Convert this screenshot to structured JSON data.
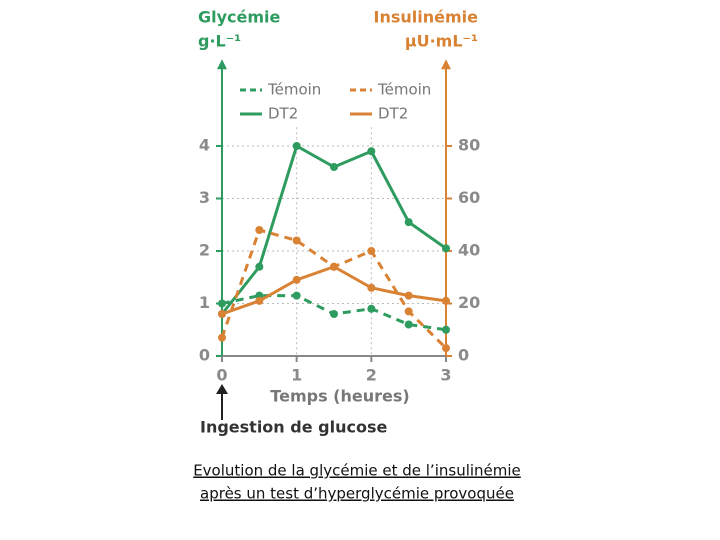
{
  "chart_data": {
    "type": "line",
    "y_label": [
      "Glycémie",
      "g·L⁻¹"
    ],
    "y2_label": [
      "Insulinémie",
      "μU·mL⁻¹"
    ],
    "x_label": "Temps (heures)",
    "annotation": "Ingestion de glucose",
    "x": [
      0,
      0.5,
      1,
      1.5,
      2,
      2.5,
      3
    ],
    "xlim": [
      0,
      3
    ],
    "xticks": [
      0,
      1,
      2,
      3
    ],
    "ylim": [
      0,
      5.5
    ],
    "yticks": [
      0,
      1,
      2,
      3,
      4
    ],
    "y2lim": [
      0,
      110
    ],
    "y2ticks": [
      0,
      20,
      40,
      60,
      80
    ],
    "grid": true,
    "series": [
      {
        "name": "Témoin",
        "color": "#2e9b5f",
        "dash": true,
        "values": [
          1.0,
          1.15,
          1.15,
          0.8,
          0.9,
          0.6,
          0.5
        ]
      },
      {
        "name": "DT2",
        "color": "#2e9b5f",
        "dash": false,
        "values": [
          0.8,
          1.7,
          4.0,
          3.6,
          3.9,
          2.55,
          2.05
        ]
      },
      {
        "name": "Témoin",
        "color": "#d98234",
        "dash": true,
        "axis": "y2",
        "values": [
          7,
          48,
          44,
          34,
          40,
          17,
          3
        ]
      },
      {
        "name": "DT2",
        "color": "#d98234",
        "dash": false,
        "axis": "y2",
        "values": [
          16,
          21,
          29,
          34,
          26,
          23,
          21
        ]
      }
    ]
  },
  "caption": [
    "Evolution de la glycémie et de l’insulinémie",
    "après un test d’hyperglycémie provoquée"
  ]
}
